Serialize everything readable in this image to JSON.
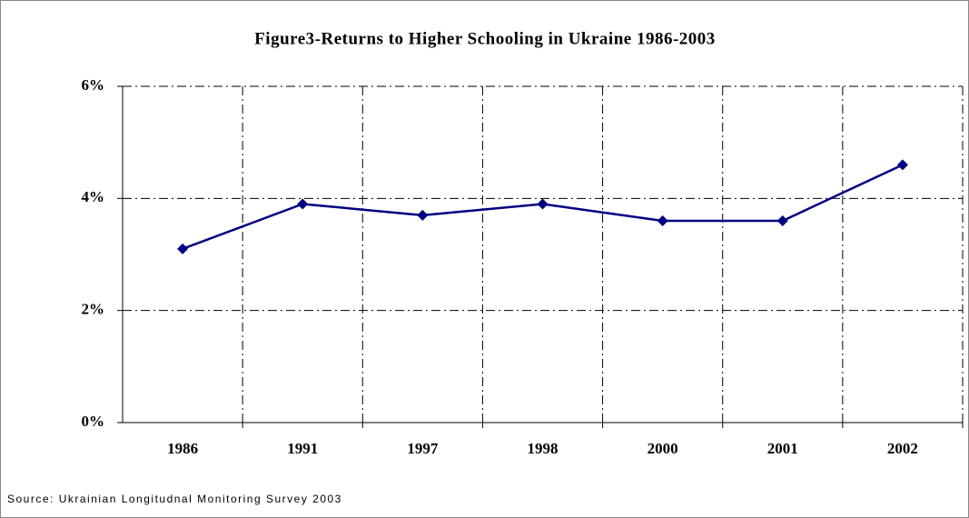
{
  "chart_data": {
    "type": "line",
    "title": "Figure3-Returns to Higher Schooling in Ukraine 1986-2003",
    "source": "Source: Ukrainian Longitudnal Monitoring Survey 2003",
    "categories": [
      "1986",
      "1991",
      "1997",
      "1998",
      "2000",
      "2001",
      "2002"
    ],
    "series": [
      {
        "name": "Returns to Higher Schooling",
        "color": "#000080",
        "values": [
          3.1,
          3.9,
          3.7,
          3.9,
          3.6,
          3.6,
          4.6
        ]
      }
    ],
    "ylim": [
      0,
      6
    ],
    "yticks": [
      {
        "value": 0,
        "label": "0%"
      },
      {
        "value": 2,
        "label": "2%"
      },
      {
        "value": 4,
        "label": "4%"
      },
      {
        "value": 6,
        "label": "6%"
      }
    ],
    "grid": true
  }
}
